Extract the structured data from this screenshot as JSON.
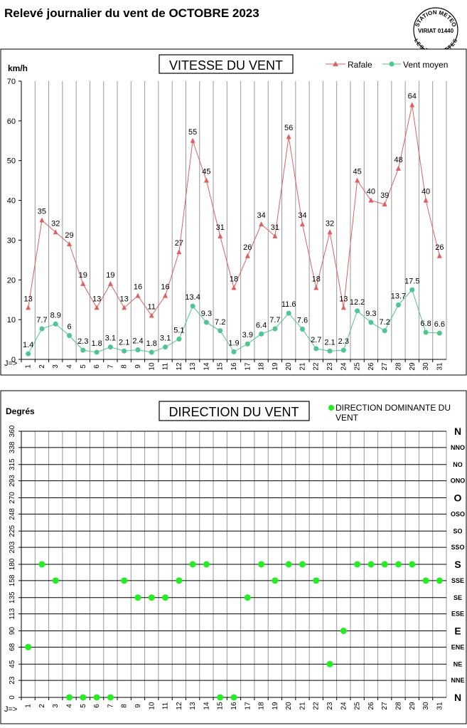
{
  "page": {
    "title": "Relevé journalier du vent de OCTOBRE 2023"
  },
  "stamp": {
    "line1": "STATION METEO",
    "line2": "VIRIAT 01440",
    "line3": "LES FAUVETTES"
  },
  "chart_data": [
    {
      "type": "line",
      "title": "VITESSE DU VENT",
      "ylabel": "km/h",
      "x_axis_prefix": "J=>",
      "x": [
        1,
        2,
        3,
        4,
        5,
        6,
        7,
        8,
        9,
        10,
        11,
        12,
        13,
        14,
        15,
        16,
        17,
        18,
        19,
        20,
        21,
        22,
        23,
        24,
        25,
        26,
        27,
        28,
        29,
        30,
        31
      ],
      "ylim": [
        0,
        70
      ],
      "yticks": [
        0,
        10,
        20,
        30,
        40,
        50,
        60,
        70
      ],
      "grid": "vertical",
      "legend_position": "top-right",
      "series": [
        {
          "name": "Rafale",
          "color": "#e0605f",
          "marker": "triangle",
          "values": [
            13,
            35,
            32,
            29,
            19,
            13,
            19,
            13,
            16,
            11,
            16,
            27,
            55,
            45,
            31,
            18,
            26,
            34,
            31,
            56,
            34,
            18,
            32,
            13,
            45,
            40,
            39,
            48,
            64,
            40,
            26
          ],
          "labels": [
            "13",
            "35",
            "32",
            "29",
            "19",
            "13",
            "19",
            "13",
            "16",
            "11",
            "16",
            "27",
            "55",
            "45",
            "31",
            "18",
            "26",
            "34",
            "31",
            "56",
            "34",
            "18",
            "32",
            "13",
            "45",
            "40",
            "39",
            "48",
            "64",
            "40",
            "26"
          ]
        },
        {
          "name": "Vent moyen",
          "color": "#4fc58f",
          "marker": "circle",
          "values": [
            1.4,
            7.7,
            8.9,
            6,
            2.3,
            1.8,
            3.1,
            2.1,
            2.4,
            1.8,
            3.1,
            5.1,
            13.4,
            9.3,
            7.2,
            1.9,
            3.9,
            6.4,
            7.7,
            11.6,
            7.6,
            2.7,
            2.1,
            2.3,
            12.2,
            9.3,
            7.2,
            13.7,
            17.5,
            6.8,
            6.6
          ],
          "labels": [
            "1.4",
            "7.7",
            "8.9",
            "6",
            "2.3",
            "1.8",
            "3.1",
            "2.1",
            "2.4",
            "1.8",
            "3.1",
            "5.1",
            "13.4",
            "9.3",
            "7.2",
            "1.9",
            "3.9",
            "6.4",
            "7.7",
            "11.6",
            "7.6",
            "2.7",
            "2.1",
            "2.3",
            "12.2",
            "9.3",
            "7.2",
            "13.7",
            "17.5",
            "6.8",
            "6.6"
          ]
        }
      ]
    },
    {
      "type": "scatter",
      "title": "DIRECTION DU VENT",
      "ylabel": "Degrés",
      "x_axis_prefix": "J=>",
      "x": [
        1,
        2,
        3,
        4,
        5,
        6,
        7,
        8,
        9,
        10,
        11,
        12,
        13,
        14,
        15,
        16,
        17,
        18,
        19,
        20,
        21,
        22,
        23,
        24,
        25,
        26,
        27,
        28,
        29,
        30,
        31
      ],
      "ylim": [
        0,
        360
      ],
      "yticks": [
        0,
        23,
        45,
        68,
        90,
        113,
        135,
        158,
        180,
        203,
        225,
        248,
        270,
        293,
        315,
        338,
        360
      ],
      "compass_labels": [
        "N",
        "NNE",
        "NE",
        "ENE",
        "E",
        "ESE",
        "SE",
        "SSE",
        "S",
        "SSO",
        "SO",
        "OSO",
        "O",
        "ONO",
        "NO",
        "NNO",
        "N"
      ],
      "grid": "both",
      "legend_position": "top-right",
      "series": [
        {
          "name": "DIRECTION DOMINANTE DU VENT",
          "color": "#22ee22",
          "marker": "circle",
          "values": [
            68,
            180,
            158,
            0,
            0,
            0,
            0,
            158,
            135,
            135,
            135,
            158,
            180,
            180,
            0,
            0,
            135,
            180,
            158,
            180,
            180,
            158,
            45,
            90,
            180,
            180,
            180,
            180,
            180,
            158,
            158
          ]
        }
      ]
    }
  ]
}
